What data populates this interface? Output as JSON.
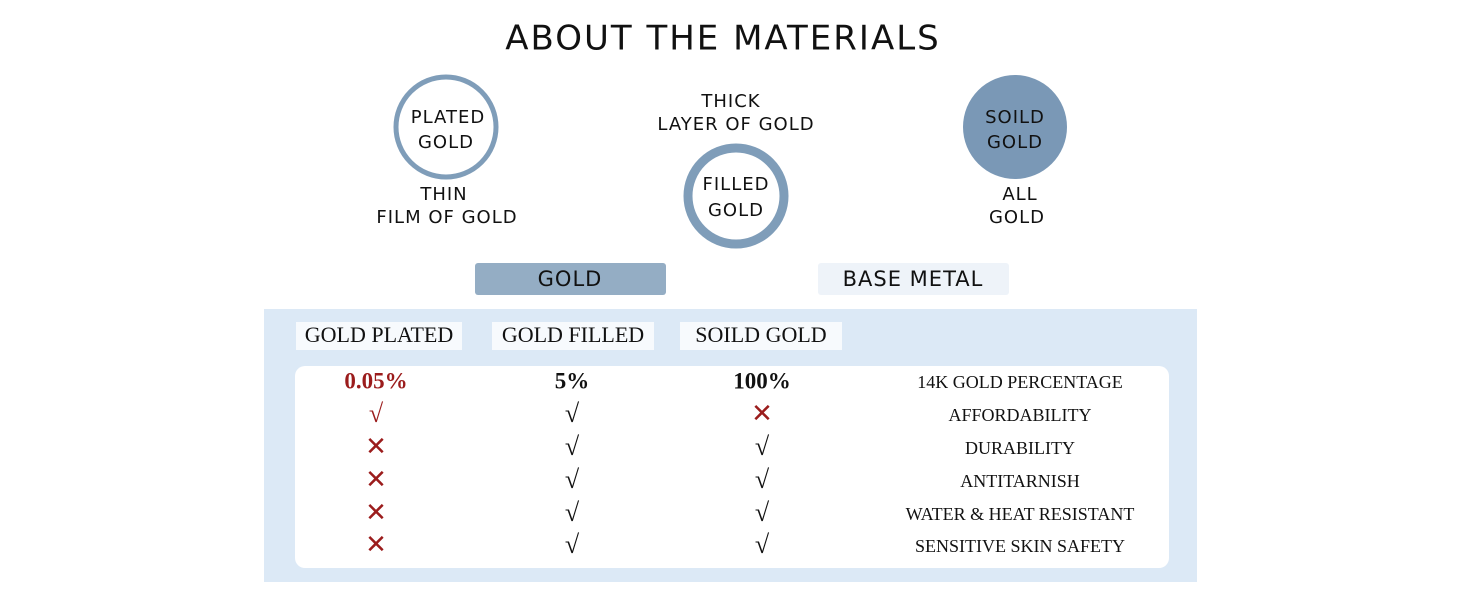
{
  "title": "ABOUT THE MATERIALS",
  "circles": [
    {
      "label": [
        "PLATED",
        "GOLD"
      ],
      "caption": [
        "THIN",
        "FILM OF GOLD"
      ]
    },
    {
      "label": [
        "FILLED",
        "GOLD"
      ],
      "caption": [
        "THICK",
        "LAYER OF GOLD"
      ]
    },
    {
      "label": [
        "SOILD",
        "GOLD"
      ],
      "caption": [
        "ALL",
        "GOLD"
      ]
    }
  ],
  "legend": [
    {
      "label": "GOLD",
      "color": "#94adc4"
    },
    {
      "label": "BASE METAL",
      "color": "#eef3f9"
    }
  ],
  "table": {
    "headers": [
      "GOLD PLATED",
      "GOLD FILLED",
      "SOILD GOLD"
    ],
    "rows": [
      {
        "label": "14K GOLD PERCENTAGE",
        "cells": [
          "0.05%",
          "5%",
          "100%"
        ],
        "colors": [
          "#9b1c1c",
          "#111111",
          "#111111"
        ]
      },
      {
        "label": "AFFORDABILITY",
        "cells": [
          "√",
          "√",
          "✕"
        ],
        "colors": [
          "#9b1c1c",
          "#111111",
          "#9b1c1c"
        ]
      },
      {
        "label": "DURABILITY",
        "cells": [
          "✕",
          "√",
          "√"
        ],
        "colors": [
          "#9b1c1c",
          "#111111",
          "#111111"
        ]
      },
      {
        "label": "ANTITARNISH",
        "cells": [
          "✕",
          "√",
          "√"
        ],
        "colors": [
          "#9b1c1c",
          "#111111",
          "#111111"
        ]
      },
      {
        "label": "WATER & HEAT RESISTANT",
        "cells": [
          "✕",
          "√",
          "√"
        ],
        "colors": [
          "#9b1c1c",
          "#111111",
          "#111111"
        ]
      },
      {
        "label": "SENSITIVE SKIN SAFETY",
        "cells": [
          "✕",
          "√",
          "√"
        ],
        "colors": [
          "#9b1c1c",
          "#111111",
          "#111111"
        ]
      }
    ]
  }
}
